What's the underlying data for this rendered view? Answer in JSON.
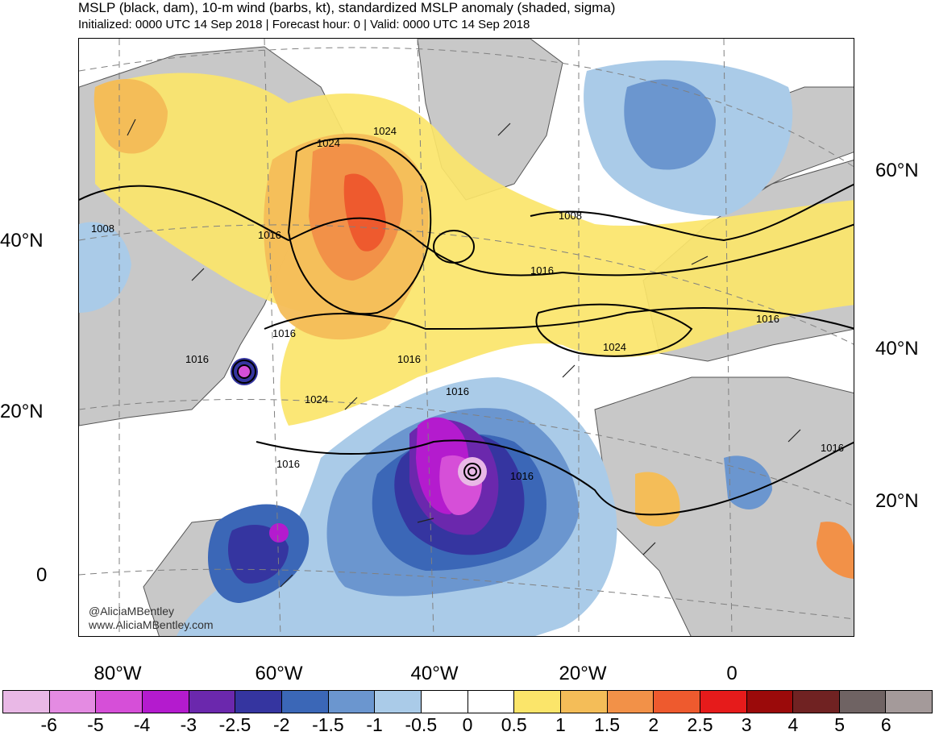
{
  "header": {
    "title": "MSLP (black, dam), 10-m wind (barbs, kt), standardized MSLP anomaly (shaded, sigma)",
    "subtitle": "Initialized: 0000 UTC 14 Sep 2018 | Forecast hour: 0 | Valid: 0000 UTC 14 Sep 2018"
  },
  "axes": {
    "left_lat": [
      "40°N",
      "20°N",
      "0"
    ],
    "right_lat": [
      "60°N",
      "40°N",
      "20°N"
    ],
    "bottom_lon": [
      "80°W",
      "60°W",
      "40°W",
      "20°W",
      "0"
    ]
  },
  "isobar_labels": [
    "1008",
    "1016",
    "1024",
    "1016",
    "1016",
    "1024",
    "1024",
    "1016",
    "1016",
    "1016",
    "1008",
    "1016",
    "1024",
    "1016",
    "1016",
    "1016"
  ],
  "credit": {
    "handle": "@AliciaMBentley",
    "site": "www.AliciaMBentley.com"
  },
  "colorbar": {
    "colors": [
      "#e9b8e6",
      "#e48be2",
      "#d64fd8",
      "#b41bce",
      "#6b28ad",
      "#3535a0",
      "#3b67b7",
      "#6b96cf",
      "#aacbe8",
      "#ffffff",
      "#ffffff",
      "#fbe56a",
      "#f4bd58",
      "#f29148",
      "#ee5a2e",
      "#e61b1b",
      "#9b0a0a",
      "#702222",
      "#6f6363",
      "#a49a9a"
    ],
    "labels": [
      "-6",
      "-5",
      "-4",
      "-3",
      "-2.5",
      "-2",
      "-1.5",
      "-1",
      "-0.5",
      "0",
      "0.5",
      "1",
      "1.5",
      "2",
      "2.5",
      "3",
      "4",
      "5",
      "6"
    ]
  },
  "legend_colors": {
    "land": "#c8c8c8",
    "isobar": "#000000",
    "coast": "#555555",
    "grid": "#808080"
  }
}
